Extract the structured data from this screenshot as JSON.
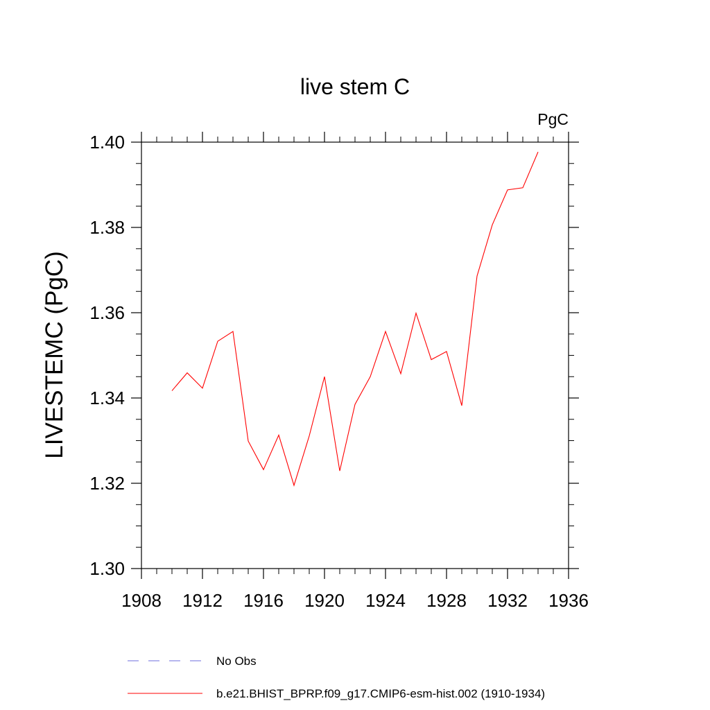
{
  "chart_data": {
    "type": "line",
    "title": "live stem C",
    "units": "PgC",
    "ylabel": "LIVESTEMC  (PgC)",
    "xlabel": "",
    "xlim": [
      1908,
      1936
    ],
    "ylim": [
      1.3,
      1.4
    ],
    "x_ticks": [
      1908,
      1912,
      1916,
      1920,
      1924,
      1928,
      1932,
      1936
    ],
    "x_tick_labels": [
      "1908",
      "1912",
      "1916",
      "1920",
      "1924",
      "1928",
      "1932",
      "1936"
    ],
    "y_ticks": [
      1.3,
      1.32,
      1.34,
      1.36,
      1.38,
      1.4
    ],
    "y_tick_labels": [
      "1.30",
      "1.32",
      "1.34",
      "1.36",
      "1.38",
      "1.40"
    ],
    "x_minor_step": 1,
    "y_minor_step": 0.005,
    "grid": false,
    "legend_position": "bottom",
    "series": [
      {
        "name": "b.e21.BHIST_BPRP.f09_g17.CMIP6-esm-hist.002 (1910-1934)",
        "color": "#ff0000",
        "dash": "solid",
        "x": [
          1910,
          1911,
          1912,
          1913,
          1914,
          1915,
          1916,
          1917,
          1918,
          1919,
          1920,
          1921,
          1922,
          1923,
          1924,
          1925,
          1926,
          1927,
          1928,
          1929,
          1930,
          1931,
          1932,
          1933,
          1934
        ],
        "y": [
          1.3417,
          1.3459,
          1.3423,
          1.3533,
          1.3556,
          1.3299,
          1.3232,
          1.3313,
          1.3195,
          1.3311,
          1.345,
          1.3229,
          1.3385,
          1.345,
          1.3556,
          1.3457,
          1.3599,
          1.349,
          1.3509,
          1.3382,
          1.3686,
          1.3806,
          1.3888,
          1.3893,
          1.3977
        ]
      }
    ],
    "legend": [
      {
        "label": "No Obs",
        "color": "#6e6edc",
        "dash": "dashed"
      },
      {
        "label": "b.e21.BHIST_BPRP.f09_g17.CMIP6-esm-hist.002 (1910-1934)",
        "color": "#ff0000",
        "dash": "solid"
      }
    ]
  }
}
